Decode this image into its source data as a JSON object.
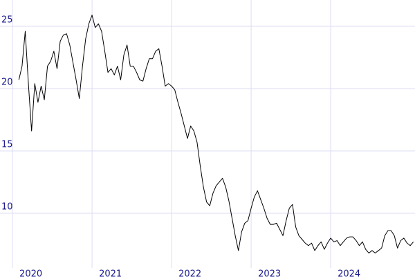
{
  "chart_data": {
    "type": "line",
    "x": [
      2020.08,
      2020.12,
      2020.16,
      2020.2,
      2020.24,
      2020.28,
      2020.32,
      2020.36,
      2020.4,
      2020.44,
      2020.48,
      2020.52,
      2020.56,
      2020.6,
      2020.64,
      2020.68,
      2020.72,
      2020.76,
      2020.8,
      2020.84,
      2020.88,
      2020.92,
      2020.96,
      2021.0,
      2021.04,
      2021.08,
      2021.12,
      2021.16,
      2021.2,
      2021.24,
      2021.28,
      2021.32,
      2021.36,
      2021.4,
      2021.44,
      2021.48,
      2021.52,
      2021.56,
      2021.6,
      2021.64,
      2021.68,
      2021.72,
      2021.76,
      2021.8,
      2021.84,
      2021.88,
      2021.92,
      2021.96,
      2022.0,
      2022.04,
      2022.08,
      2022.12,
      2022.16,
      2022.2,
      2022.24,
      2022.28,
      2022.32,
      2022.36,
      2022.4,
      2022.44,
      2022.48,
      2022.52,
      2022.56,
      2022.6,
      2022.64,
      2022.68,
      2022.72,
      2022.76,
      2022.8,
      2022.84,
      2022.88,
      2022.92,
      2022.96,
      2023.0,
      2023.04,
      2023.08,
      2023.12,
      2023.16,
      2023.2,
      2023.24,
      2023.28,
      2023.32,
      2023.36,
      2023.4,
      2023.44,
      2023.48,
      2023.52,
      2023.56,
      2023.6,
      2023.64,
      2023.68,
      2023.72,
      2023.76,
      2023.8,
      2023.84,
      2023.88,
      2023.92,
      2023.96,
      2024.0,
      2024.04,
      2024.08,
      2024.12,
      2024.16,
      2024.2,
      2024.24,
      2024.28,
      2024.32,
      2024.36,
      2024.4,
      2024.44,
      2024.48,
      2024.52,
      2024.56,
      2024.6,
      2024.64,
      2024.68,
      2024.72,
      2024.76,
      2024.8,
      2024.84,
      2024.88,
      2024.92,
      2024.96,
      2025.0,
      2025.04
    ],
    "series": [
      {
        "color": "#000000",
        "values": [
          20.7,
          21.8,
          24.6,
          20.4,
          16.6,
          20.4,
          18.9,
          20.2,
          19.1,
          21.8,
          22.2,
          23.0,
          21.6,
          23.8,
          24.3,
          24.4,
          23.5,
          22.1,
          20.7,
          19.2,
          21.8,
          24.0,
          25.2,
          25.9,
          24.9,
          25.2,
          24.6,
          23.0,
          21.3,
          21.6,
          21.1,
          21.8,
          20.7,
          22.7,
          23.5,
          21.8,
          21.8,
          21.3,
          20.7,
          20.6,
          21.6,
          22.4,
          22.4,
          23.0,
          23.2,
          21.8,
          20.2,
          20.4,
          20.2,
          19.9,
          18.9,
          18.0,
          17.0,
          16.0,
          17.0,
          16.6,
          15.7,
          13.8,
          12.1,
          10.9,
          10.6,
          11.6,
          12.2,
          12.5,
          12.8,
          12.1,
          11.0,
          9.6,
          8.2,
          7.0,
          8.5,
          9.2,
          9.4,
          10.4,
          11.3,
          11.8,
          11.1,
          10.4,
          9.6,
          9.1,
          9.1,
          9.2,
          8.7,
          8.2,
          9.4,
          10.4,
          10.7,
          8.9,
          8.2,
          7.9,
          7.6,
          7.4,
          7.6,
          7.0,
          7.4,
          7.7,
          7.1,
          7.6,
          8.0,
          7.7,
          7.8,
          7.4,
          7.7,
          8.0,
          8.1,
          8.1,
          7.8,
          7.4,
          7.7,
          7.1,
          6.8,
          7.0,
          6.8,
          7.0,
          7.2,
          8.2,
          8.6,
          8.6,
          8.2,
          7.2,
          7.8,
          8.0,
          7.6,
          7.4,
          7.7
        ]
      }
    ],
    "xlim": [
      2019.843,
      2025.06
    ],
    "ylim": [
      5.83,
      27.11
    ],
    "xticks": [
      2020,
      2021,
      2022,
      2023,
      2024
    ],
    "yticks": [
      10,
      15,
      20,
      25
    ],
    "grid": true
  }
}
